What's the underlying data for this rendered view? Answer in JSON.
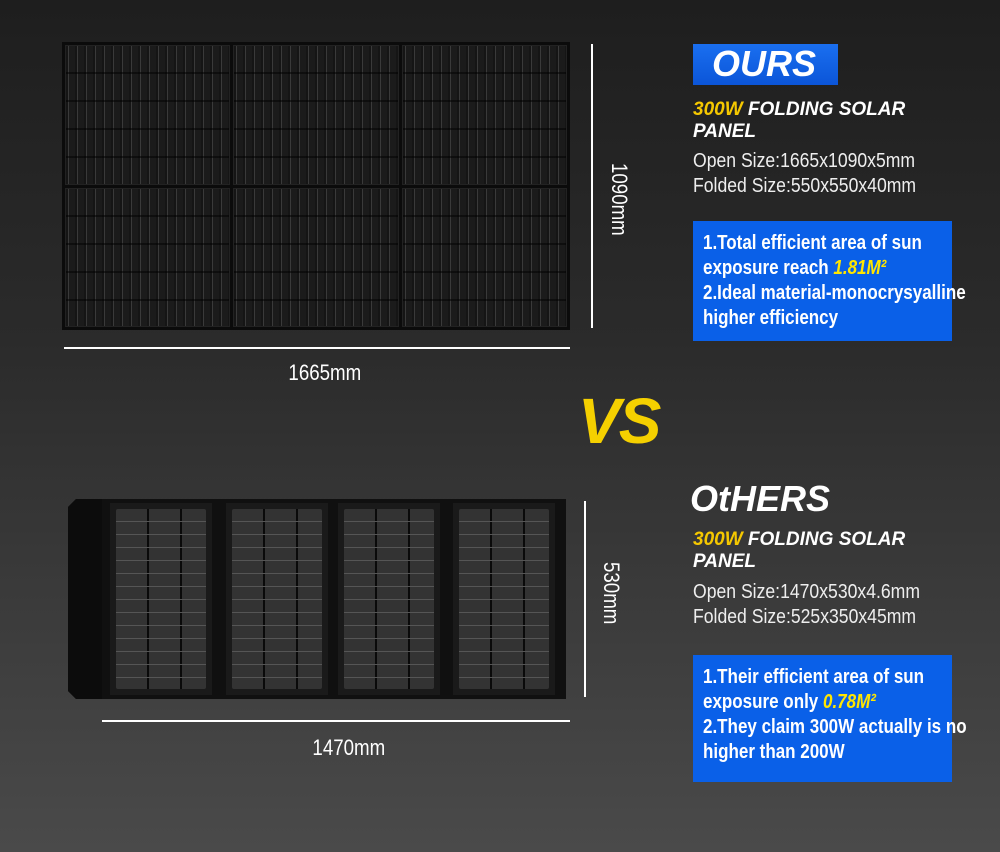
{
  "ours": {
    "badge": "OURS",
    "wattage": "300W",
    "title_rest": "FOLDING SOLAR",
    "title_line2": "PANEL",
    "open_size": "Open Size:1665x1090x5mm",
    "folded_size": "Folded Size:550x550x40mm",
    "point1_a": "1.Total efficient area of sun",
    "point1_b": "exposure reach",
    "point1_value": "1.81M²",
    "point2_a": "2.Ideal material-monocrysyalline",
    "point2_b": "higher efficiency",
    "height_label": "1090mm",
    "width_label": "1665mm"
  },
  "vs": "VS",
  "others": {
    "heading": "OtHERS",
    "wattage": "300W",
    "title_rest": "FOLDING SOLAR",
    "title_line2": "PANEL",
    "open_size": "Open Size:1470x530x4.6mm",
    "folded_size": "Folded Size:525x350x45mm",
    "point1_a": "1.Their efficient area of sun",
    "point1_b": "exposure only",
    "point1_value": "0.78M²",
    "point2_a": "2.They claim 300W actually is no",
    "point2_b": "higher than 200W",
    "height_label": "530mm",
    "width_label": "1470mm"
  },
  "colors": {
    "accent_yellow": "#f5c800",
    "box_blue": "#0a60e8"
  }
}
